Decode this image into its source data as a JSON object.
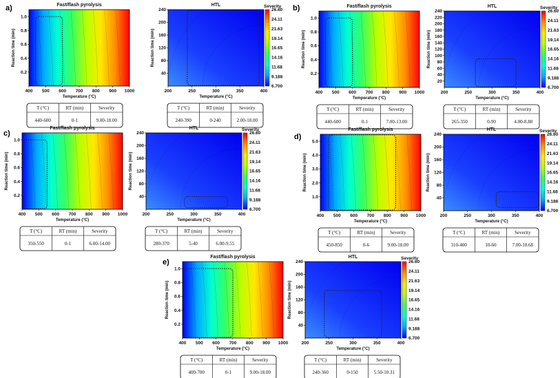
{
  "colors": {
    "colormap": [
      "#0000ff",
      "#00a8ff",
      "#00ffd0",
      "#38ff60",
      "#b8ff00",
      "#ffe800",
      "#ff8c00",
      "#ff0000"
    ],
    "box_line": "#222222"
  },
  "severity_scale": {
    "title": "Severity",
    "ticks": [
      "26.60",
      "24.11",
      "21.63",
      "19.14",
      "16.65",
      "14.16",
      "11.68",
      "9.188",
      "6.700"
    ],
    "min": 6.7,
    "max": 26.6
  },
  "table_headers": [
    "T (°C)",
    "RT (min)",
    "Severity"
  ],
  "chart_data": [
    {
      "type": "heatmap",
      "panel": "a)",
      "title": "Fast/flash pyrolysis",
      "xlabel": "Temperature (°C)",
      "ylabel": "Reaction time (min)",
      "xlim": [
        400,
        1000
      ],
      "ylim": [
        0,
        1.1
      ],
      "xticks": [
        "400",
        "500",
        "600",
        "700",
        "800",
        "900",
        "1000"
      ],
      "yticks": [
        "0.2",
        "0.4",
        "0.6",
        "0.8",
        "1.0"
      ],
      "region": {
        "T": [
          440,
          600
        ],
        "RT": [
          0,
          1
        ]
      },
      "table": [
        "440-600",
        "0-1",
        "9.00-18.00"
      ]
    },
    {
      "type": "heatmap",
      "panel": "",
      "title": "HTL",
      "xlabel": "Temperature (°C)",
      "ylabel": "Reaction time (min)",
      "xlim": [
        200,
        400
      ],
      "ylim": [
        0,
        240
      ],
      "xticks": [
        "200",
        "250",
        "300",
        "350",
        "400"
      ],
      "yticks": [
        "40",
        "80",
        "120",
        "160",
        "200",
        "240"
      ],
      "region": {
        "T": [
          240,
          390
        ],
        "RT": [
          0,
          240
        ]
      },
      "table": [
        "240-390",
        "0-240",
        "2.00-10.00"
      ]
    },
    {
      "type": "heatmap",
      "panel": "b)",
      "title": "Fast/flash pyrolysis",
      "xlabel": "Temperature (°C)",
      "ylabel": "Reaction time (min)",
      "xlim": [
        400,
        1000
      ],
      "ylim": [
        0,
        1.1
      ],
      "xticks": [
        "400",
        "500",
        "600",
        "700",
        "800",
        "900",
        "1000"
      ],
      "yticks": [
        "0.2",
        "0.4",
        "0.6",
        "0.8",
        "1.0"
      ],
      "region": {
        "T": [
          440,
          600
        ],
        "RT": [
          0,
          1
        ]
      },
      "table": [
        "440-600",
        "0-1",
        "7.00-13.00"
      ]
    },
    {
      "type": "heatmap",
      "panel": "",
      "title": "HTL",
      "xlabel": "Temperature (°C)",
      "ylabel": "Reaction time (min)",
      "xlim": [
        200,
        400
      ],
      "ylim": [
        0,
        240
      ],
      "xticks": [
        "200",
        "250",
        "300",
        "350",
        "400"
      ],
      "yticks": [
        "20",
        "40",
        "60",
        "80",
        "100",
        "120",
        "140",
        "160",
        "180",
        "200",
        "220",
        "240"
      ],
      "region": {
        "T": [
          265,
          350
        ],
        "RT": [
          0,
          90
        ]
      },
      "table": [
        "265-350",
        "0-90",
        "4.00-8.80"
      ]
    },
    {
      "type": "heatmap",
      "panel": "c)",
      "title": "Fast/flash pyrolysis",
      "xlabel": "Temperature (°C)",
      "ylabel": "Reaction time (min)",
      "xlim": [
        400,
        1000
      ],
      "ylim": [
        0,
        1.1
      ],
      "xticks": [
        "400",
        "500",
        "600",
        "700",
        "800",
        "900",
        "1000"
      ],
      "yticks": [
        "0.2",
        "0.4",
        "0.6",
        "0.8",
        "1.0"
      ],
      "region": {
        "T": [
          350,
          550
        ],
        "RT": [
          0,
          1
        ]
      },
      "table": [
        "350-550",
        "0-1",
        "6.00-14.00"
      ]
    },
    {
      "type": "heatmap",
      "panel": "",
      "title": "HTL",
      "xlabel": "Temperature (°C)",
      "ylabel": "Reaction time (min)",
      "xlim": [
        200,
        400
      ],
      "ylim": [
        0,
        240
      ],
      "xticks": [
        "200",
        "250",
        "300",
        "350",
        "400"
      ],
      "yticks": [
        "40",
        "80",
        "120",
        "160",
        "200",
        "240"
      ],
      "region": {
        "T": [
          280,
          370
        ],
        "RT": [
          5,
          40
        ]
      },
      "table": [
        "280-370",
        "5-40",
        "6.00-9.55"
      ]
    },
    {
      "type": "heatmap",
      "panel": "d)",
      "title": "Fast/flash pyrolysis",
      "xlabel": "Temperature (°C)",
      "ylabel": "Reaction time (min)",
      "xlim": [
        400,
        1000
      ],
      "ylim": [
        0,
        5.5
      ],
      "xticks": [
        "400",
        "500",
        "600",
        "700",
        "800",
        "900",
        "1000"
      ],
      "yticks": [
        "1.0",
        "2.0",
        "3.0",
        "4.0",
        "5.0"
      ],
      "region": {
        "T": [
          450,
          850
        ],
        "RT": [
          0,
          6
        ]
      },
      "table": [
        "450-850",
        "0-6",
        "9.00-18.00"
      ]
    },
    {
      "type": "heatmap",
      "panel": "",
      "title": "HTL",
      "xlabel": "Temperature (°C)",
      "ylabel": "Reaction time (min)",
      "xlim": [
        200,
        400
      ],
      "ylim": [
        0,
        240
      ],
      "xticks": [
        "200",
        "250",
        "300",
        "350",
        "400"
      ],
      "yticks": [
        "40",
        "80",
        "120",
        "160",
        "200",
        "240"
      ],
      "region": {
        "T": [
          310,
          400
        ],
        "RT": [
          10,
          60
        ]
      },
      "table": [
        "310-400",
        "10-60",
        "7.00-10.68"
      ]
    },
    {
      "type": "heatmap",
      "panel": "e)",
      "title": "Fast/flash pyrolysis",
      "xlabel": "Temperature (°C)",
      "ylabel": "Reaction time (min)",
      "xlim": [
        400,
        1000
      ],
      "ylim": [
        0,
        1.1
      ],
      "xticks": [
        "400",
        "500",
        "600",
        "700",
        "800",
        "900",
        "1000"
      ],
      "yticks": [
        "0.2",
        "0.4",
        "0.6",
        "0.8",
        "1.0"
      ],
      "region": {
        "T": [
          400,
          700
        ],
        "RT": [
          0,
          1
        ]
      },
      "table": [
        "400-700",
        "0-1",
        "9.00-18.00"
      ]
    },
    {
      "type": "heatmap",
      "panel": "",
      "title": "HTL",
      "xlabel": "Temperature (°C)",
      "ylabel": "Reaction time (min)",
      "xlim": [
        200,
        400
      ],
      "ylim": [
        0,
        240
      ],
      "xticks": [
        "200",
        "250",
        "300",
        "350",
        "400"
      ],
      "yticks": [
        "40",
        "80",
        "120",
        "160",
        "200",
        "240"
      ],
      "region": {
        "T": [
          240,
          360
        ],
        "RT": [
          0,
          150
        ]
      },
      "table": [
        "240-360",
        "0-150",
        "5.50-10.31"
      ]
    }
  ]
}
